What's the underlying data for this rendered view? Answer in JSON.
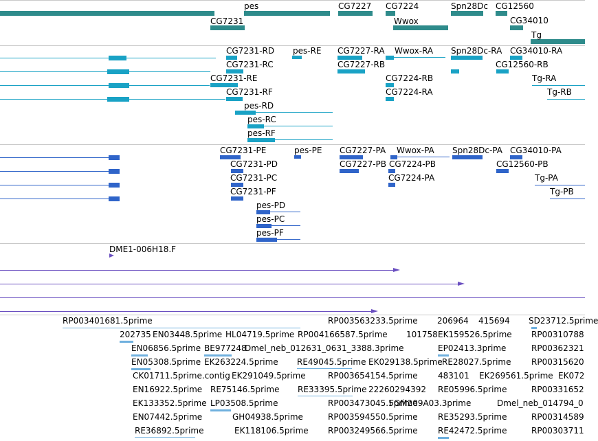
{
  "colors": {
    "gene": "#2e8b8b",
    "transcript": "#19a2c5",
    "protein": "#2f64c9",
    "clone": "#6a4fc0",
    "est": "#6fb0de",
    "separator": "#c9c9c9"
  },
  "tracks": {
    "genes": {
      "labels": [
        "pes",
        "CG7231",
        "CG7227",
        "CG7224",
        "Wwox",
        "Spn28Dc",
        "CG12560",
        "CG34010",
        "Tg"
      ]
    },
    "transcripts": {
      "labels": [
        "CG7231-RD",
        "pes-RE",
        "CG7227-RA",
        "Wwox-RA",
        "Spn28Dc-RA",
        "CG34010-RA",
        "CG7231-RC",
        "CG7227-RB",
        "CG12560-RB",
        "CG7231-RE",
        "CG7224-RB",
        "Tg-RA",
        "CG7231-RF",
        "CG7224-RA",
        "Tg-RB",
        "pes-RD",
        "pes-RC",
        "pes-RF"
      ]
    },
    "proteins": {
      "labels": [
        "CG7231-PE",
        "pes-PE",
        "CG7227-PA",
        "Wwox-PA",
        "Spn28Dc-PA",
        "CG34010-PA",
        "CG7231-PD",
        "CG7227-PB",
        "CG7224-PB",
        "CG12560-PB",
        "CG7231-PC",
        "CG7224-PA",
        "Tg-PA",
        "CG7231-PF",
        "Tg-PB",
        "pes-PD",
        "pes-PC",
        "pes-PF"
      ]
    },
    "clones": {
      "labels": [
        "DME1-006H18.F"
      ]
    },
    "ests": {
      "labels": [
        "RP003401681.5prime",
        "RP003563233.5prime",
        "206964",
        "415694",
        "SD23712.5prime",
        "202735",
        "EN03448.5prime",
        "HL04719.5prime",
        "RP004166587.5prime",
        "101758",
        "EK159526.5prime",
        "RP00310788",
        "EN06856.5prime",
        "BE977248",
        "Dmel_neb_012631_0631_3388.3prime",
        "EP02413.3prime",
        "RP00362321",
        "EN05308.5prime",
        "EK263224.5prime",
        "RE49045.5prime",
        "EK029138.5prime",
        "RE28027.5prime",
        "RP00315620",
        "CK01711.5prime.contig",
        "EK291049.5prime",
        "RP003654154.5prime",
        "483101",
        "EK269561.5prime",
        "EK072",
        "EN16922.5prime",
        "RE75146.5prime",
        "RE33395.5prime",
        "22260294392",
        "RE05996.5prime",
        "RP00331652",
        "EK133352.5prime",
        "LP03508.5prime",
        "RP003473045.5prime",
        "FGM209A03.3prime",
        "Dmel_neb_014794_0",
        "EN07442.5prime",
        "GH04938.5prime",
        "RP003594550.5prime",
        "RE35293.5prime",
        "RP00314589",
        "RE36892.5prime",
        "EK118106.5prime",
        "RP003249566.5prime",
        "RE42472.5prime",
        "RP00303711"
      ]
    }
  }
}
